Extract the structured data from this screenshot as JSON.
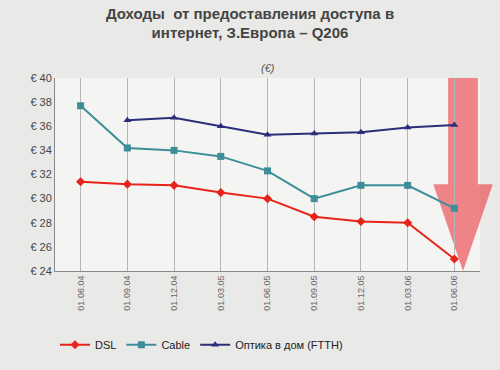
{
  "chart_data": {
    "type": "line",
    "title": "Доходы  от предоставления доступа в\nинтернет, З.Европа – Q206",
    "subtitle": "(€)",
    "categories": [
      "01.06.04",
      "01.09.04",
      "01.12.04",
      "01.03.05",
      "01.06.05",
      "01.09.05",
      "01.12.05",
      "01.03.06",
      "01.06.06"
    ],
    "series": [
      {
        "name": "DSL",
        "color": "#e8231b",
        "marker": "diamond",
        "values": [
          31.4,
          31.2,
          31.1,
          30.5,
          30.0,
          28.5,
          28.1,
          28.0,
          25.0
        ]
      },
      {
        "name": "Cable",
        "color": "#3e8e99",
        "marker": "square",
        "values": [
          37.7,
          34.2,
          34.0,
          33.5,
          32.3,
          30.0,
          31.1,
          31.1,
          29.2
        ]
      },
      {
        "name": "Оптика в дом (FTTH)",
        "color": "#2b2f7a",
        "marker": "triangle-up",
        "values": [
          null,
          36.5,
          36.7,
          36.0,
          35.3,
          35.4,
          35.5,
          35.9,
          36.1
        ]
      }
    ],
    "ylim": [
      24,
      40
    ],
    "yticks": [
      {
        "value": 24,
        "label": "€ 24"
      },
      {
        "value": 26,
        "label": "€ 26"
      },
      {
        "value": 28,
        "label": "€ 28"
      },
      {
        "value": 30,
        "label": "€ 30"
      },
      {
        "value": 32,
        "label": "€ 32"
      },
      {
        "value": 34,
        "label": "€ 34"
      },
      {
        "value": 36,
        "label": "€ 36"
      },
      {
        "value": 38,
        "label": "€ 38"
      },
      {
        "value": 40,
        "label": "€ 40"
      }
    ],
    "grid": true,
    "legend": "bottom"
  }
}
